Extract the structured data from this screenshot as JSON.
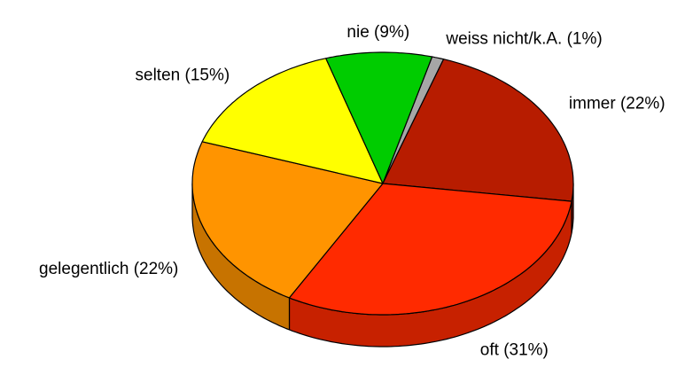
{
  "chart_data": {
    "type": "pie3d",
    "categories": [
      "weiss nicht/k.A. (1%)",
      "immer (22%)",
      "oft (31%)",
      "gelegentlich (22%)",
      "selten (15%)",
      "nie (9%)"
    ],
    "values": [
      1,
      22,
      31,
      22,
      15,
      9
    ],
    "colors": [
      "#a6a6a6",
      "#b71c00",
      "#ff2a00",
      "#ff9400",
      "#ffff00",
      "#00cc00"
    ]
  }
}
